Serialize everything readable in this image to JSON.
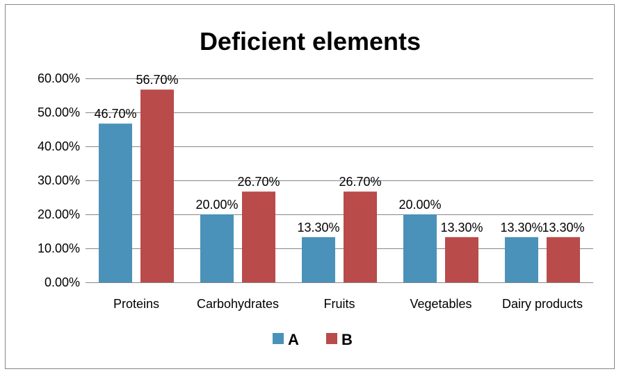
{
  "chart_data": {
    "type": "bar",
    "title": "Deficient elements",
    "xlabel": "",
    "ylabel": "",
    "categories": [
      "Proteins",
      "Carbohydrates",
      "Fruits",
      "Vegetables",
      "Dairy products"
    ],
    "series": [
      {
        "name": "A",
        "color": "#4A92B9",
        "values": [
          46.7,
          20.0,
          13.3,
          20.0,
          13.3
        ],
        "labels": [
          "46.70%",
          "20.00%",
          "13.30%",
          "20.00%",
          "13.30%"
        ]
      },
      {
        "name": "B",
        "color": "#B94B4A",
        "values": [
          56.7,
          26.7,
          26.7,
          13.3,
          13.3
        ],
        "labels": [
          "56.70%",
          "26.70%",
          "26.70%",
          "13.30%",
          "13.30%"
        ]
      }
    ],
    "ylim": [
      0,
      60
    ],
    "yticks": [
      0,
      10,
      20,
      30,
      40,
      50,
      60
    ],
    "ytick_labels": [
      "0.00%",
      "10.00%",
      "20.00%",
      "30.00%",
      "40.00%",
      "50.00%",
      "60.00%"
    ],
    "grid": true,
    "legend": "bottom"
  }
}
